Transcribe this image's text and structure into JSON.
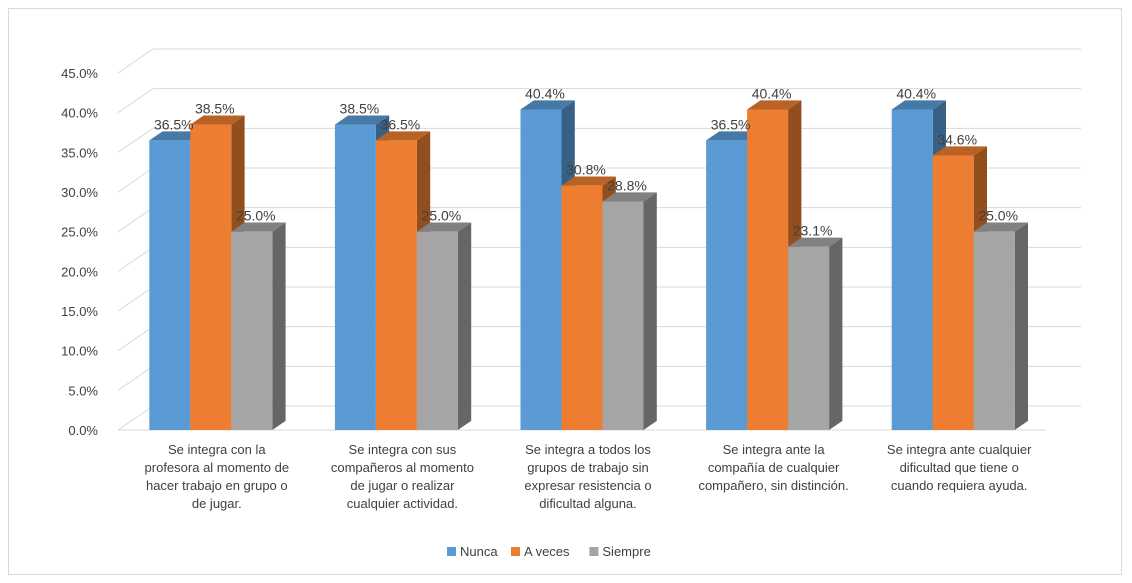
{
  "chart_data": {
    "type": "bar",
    "title": "",
    "xlabel": "",
    "ylabel": "",
    "ylim": [
      0,
      45
    ],
    "y_ticks": [
      "0.0%",
      "5.0%",
      "10.0%",
      "15.0%",
      "20.0%",
      "25.0%",
      "30.0%",
      "35.0%",
      "40.0%",
      "45.0%"
    ],
    "grid": true,
    "legend_position": "bottom",
    "categories": [
      [
        "Se integra con la",
        "profesora al momento de",
        "hacer trabajo en grupo o",
        "de jugar."
      ],
      [
        "Se integra con sus",
        "compañeros al momento",
        "de jugar o realizar",
        "cualquier actividad."
      ],
      [
        "Se integra a todos los",
        "grupos de trabajo sin",
        "expresar resistencia o",
        "dificultad alguna."
      ],
      [
        "Se integra ante la",
        "compañía de cualquier",
        "compañero, sin distinción."
      ],
      [
        "Se integra ante cualquier",
        "dificultad que tiene o",
        "cuando requiera ayuda."
      ]
    ],
    "series": [
      {
        "name": "Nunca",
        "color": "#5b9bd5",
        "values": [
          36.5,
          38.5,
          40.4,
          36.5,
          40.4
        ],
        "labels": [
          "36.5%",
          "38.5%",
          "40.4%",
          "36.5%",
          "40.4%"
        ]
      },
      {
        "name": "A veces",
        "color": "#ed7d31",
        "values": [
          38.5,
          36.5,
          30.8,
          40.4,
          34.6
        ],
        "labels": [
          "38.5%",
          "36.5%",
          "30.8%",
          "40.4%",
          "34.6%"
        ]
      },
      {
        "name": "Siempre",
        "color": "#a5a5a5",
        "values": [
          25.0,
          25.0,
          28.8,
          23.1,
          25.0
        ],
        "labels": [
          "25.0%",
          "25.0%",
          "28.8%",
          "23.1%",
          "25.0%"
        ]
      }
    ]
  }
}
